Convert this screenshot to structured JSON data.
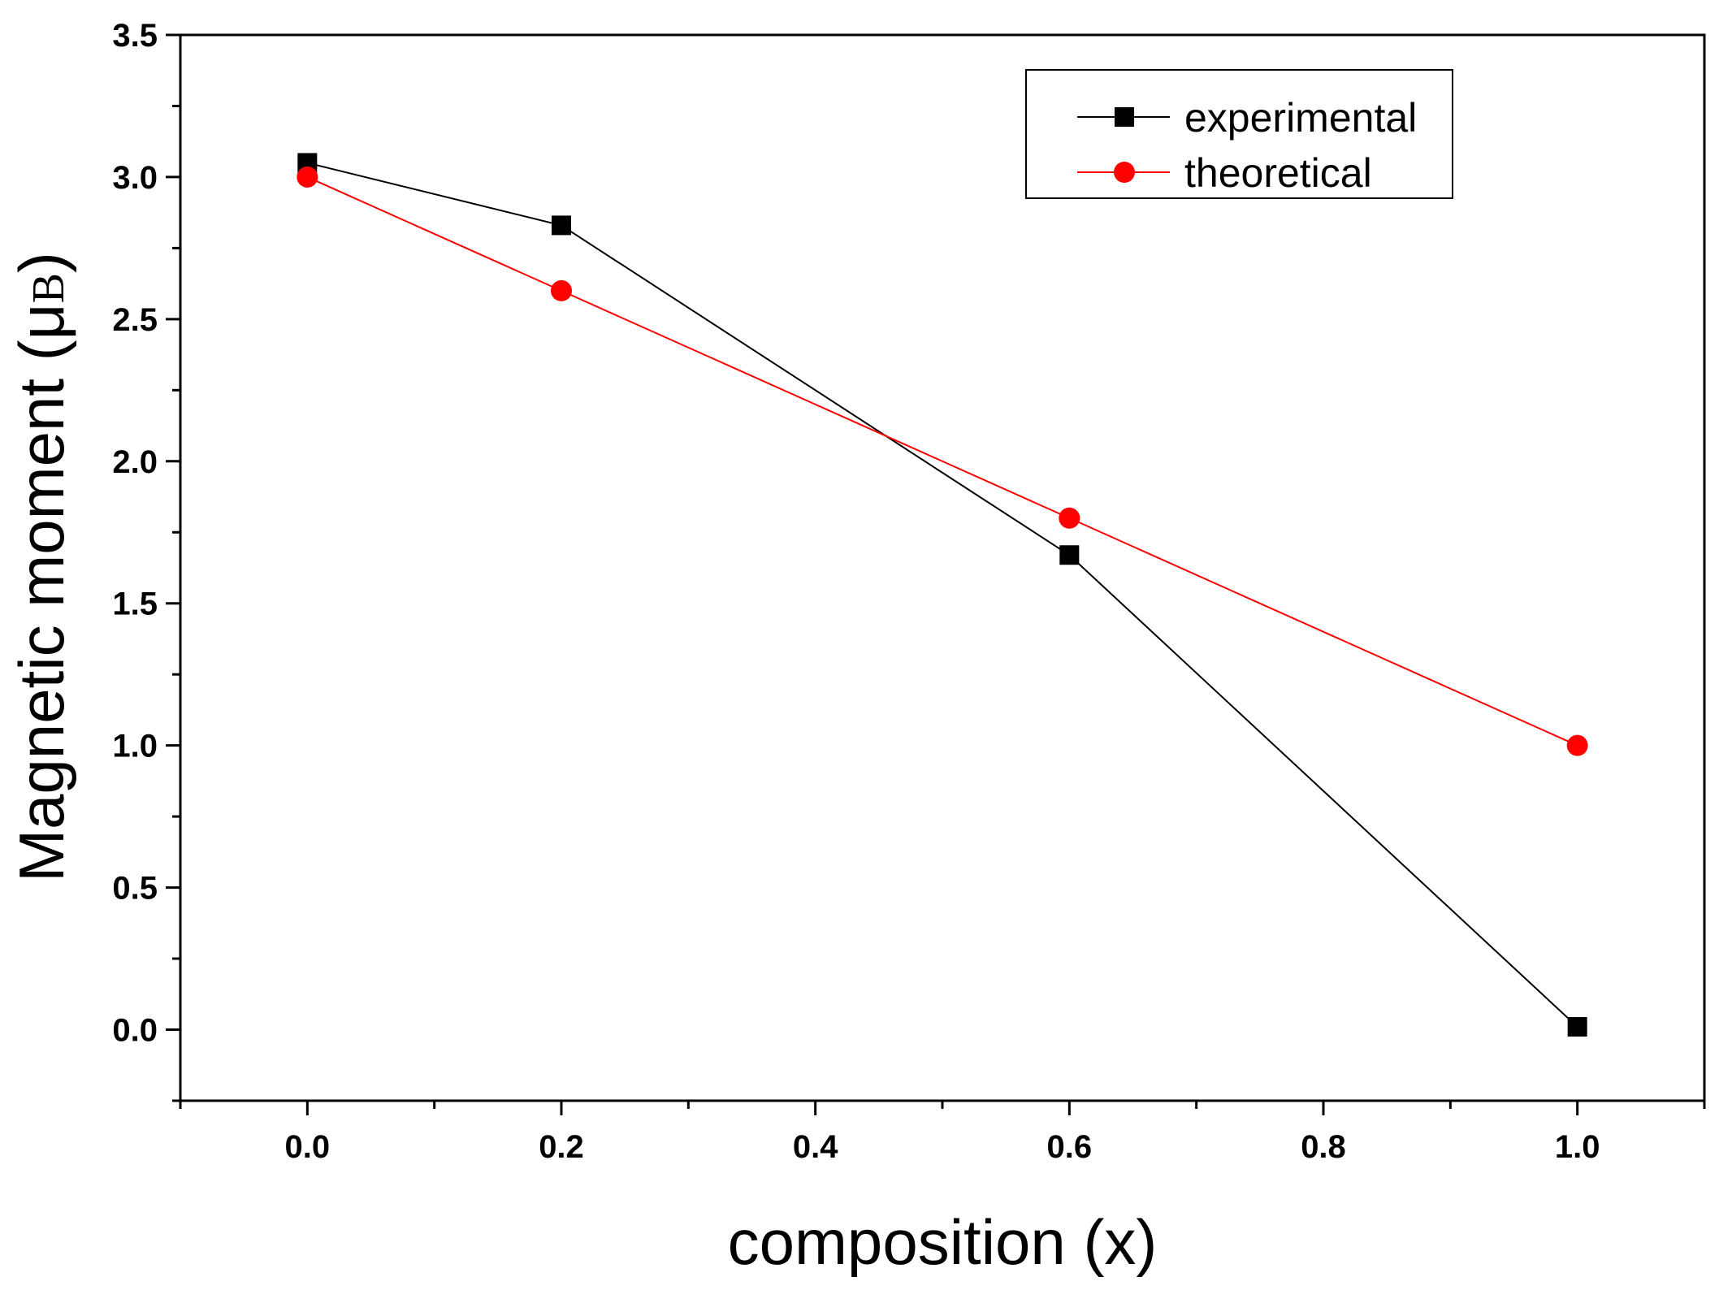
{
  "chart_data": {
    "type": "line",
    "title": "",
    "xlabel": "composition (x)",
    "ylabel": "Magnetic moment (μB)",
    "ylabel_parts": {
      "main": "Magnetic moment (μ",
      "sub": "B",
      "close": ")"
    },
    "xlim": [
      -0.1,
      1.1
    ],
    "ylim": [
      -0.25,
      3.5
    ],
    "x_ticks": [
      0.0,
      0.2,
      0.4,
      0.6,
      0.8,
      1.0
    ],
    "x_tick_labels": [
      "0.0",
      "0.2",
      "0.4",
      "0.6",
      "0.8",
      "1.0"
    ],
    "y_ticks": [
      0.0,
      0.5,
      1.0,
      1.5,
      2.0,
      2.5,
      3.0,
      3.5
    ],
    "y_tick_labels": [
      "0.0",
      "0.5",
      "1.0",
      "1.5",
      "2.0",
      "2.5",
      "3.0",
      "3.5"
    ],
    "grid": false,
    "legend_position": "top-right",
    "series": [
      {
        "name": "experimental",
        "color": "#000000",
        "marker": "square",
        "x": [
          0.0,
          0.2,
          0.6,
          1.0
        ],
        "y": [
          3.05,
          2.83,
          1.67,
          0.01
        ]
      },
      {
        "name": "theoretical",
        "color": "#ff0000",
        "marker": "circle",
        "x": [
          0.0,
          0.2,
          0.6,
          1.0
        ],
        "y": [
          3.0,
          2.6,
          1.8,
          1.0
        ]
      }
    ]
  }
}
